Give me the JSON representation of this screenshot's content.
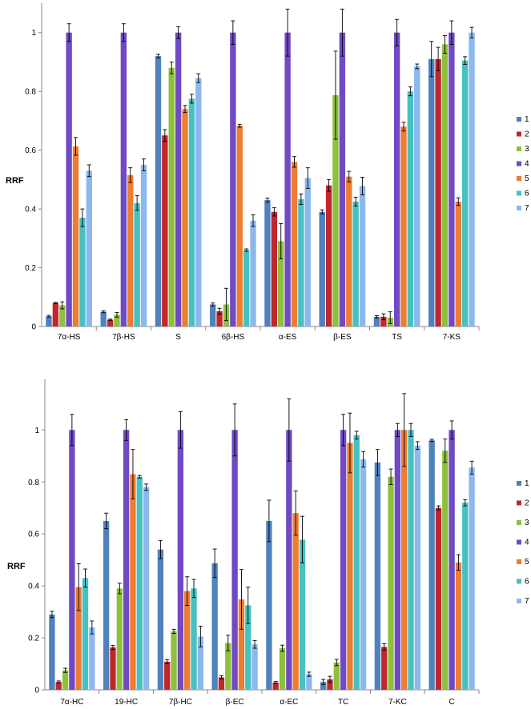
{
  "series_colors": [
    "#4F81BD",
    "#C0272D",
    "#8DC03C",
    "#7049C3",
    "#EC7D31",
    "#46C1C1",
    "#8CB8EE"
  ],
  "chart_data": [
    {
      "type": "bar",
      "ylabel": "RRF",
      "ylim": [
        0,
        1.1
      ],
      "yticks": [
        "0",
        "0.2",
        "0.4",
        "0.6",
        "0.8",
        "1"
      ],
      "categories": [
        "7α-HS",
        "7β-HS",
        "S",
        "6β-HS",
        "α-ES",
        "β-ES",
        "TS",
        "7-KS"
      ],
      "legend_position": "right",
      "series": [
        {
          "name": "1",
          "values": [
            0.035,
            0.05,
            0.92,
            0.075,
            0.43,
            0.39,
            0.033,
            0.91
          ],
          "errors": [
            0.003,
            0.003,
            0.006,
            0.005,
            0.007,
            0.007,
            0.004,
            0.06
          ]
        },
        {
          "name": "2",
          "values": [
            0.08,
            0.023,
            0.65,
            0.052,
            0.39,
            0.48,
            0.033,
            0.91
          ],
          "errors": [
            0.002,
            0.002,
            0.02,
            0.01,
            0.014,
            0.02,
            0.01,
            0.04
          ]
        },
        {
          "name": "3",
          "values": [
            0.072,
            0.04,
            0.88,
            0.075,
            0.29,
            0.787,
            0.03,
            0.96
          ],
          "errors": [
            0.012,
            0.008,
            0.02,
            0.055,
            0.06,
            0.15,
            0.02,
            0.03
          ]
        },
        {
          "name": "4",
          "values": [
            1.0,
            1.0,
            1.0,
            1.0,
            1.0,
            1.0,
            1.0,
            1.0
          ],
          "errors": [
            0.03,
            0.03,
            0.02,
            0.04,
            0.08,
            0.08,
            0.045,
            0.04
          ]
        },
        {
          "name": "5",
          "values": [
            0.613,
            0.515,
            0.74,
            0.683,
            0.56,
            0.51,
            0.68,
            0.425
          ],
          "errors": [
            0.03,
            0.025,
            0.012,
            0.005,
            0.018,
            0.018,
            0.015,
            0.013
          ]
        },
        {
          "name": "6",
          "values": [
            0.37,
            0.42,
            0.775,
            0.26,
            0.433,
            0.425,
            0.8,
            0.905
          ],
          "errors": [
            0.03,
            0.025,
            0.015,
            0.004,
            0.018,
            0.015,
            0.015,
            0.013
          ]
        },
        {
          "name": "7",
          "values": [
            0.53,
            0.55,
            0.845,
            0.36,
            0.505,
            0.478,
            0.885,
            1.0
          ],
          "errors": [
            0.02,
            0.02,
            0.015,
            0.02,
            0.035,
            0.03,
            0.008,
            0.018
          ]
        }
      ]
    },
    {
      "type": "bar",
      "ylabel": "RRF",
      "ylim": [
        0,
        1.2
      ],
      "yticks": [
        "0",
        "0.2",
        "0.4",
        "0.6",
        "0.8",
        "1"
      ],
      "categories": [
        "7α-HC",
        "19-HC",
        "7β-HC",
        "β-EC",
        "α-EC",
        "TC",
        "7-KC",
        "C"
      ],
      "legend_position": "right",
      "series": [
        {
          "name": "1",
          "values": [
            0.29,
            0.65,
            0.54,
            0.487,
            0.65,
            0.03,
            0.875,
            0.96
          ],
          "errors": [
            0.012,
            0.03,
            0.035,
            0.055,
            0.08,
            0.01,
            0.05,
            0.004
          ]
        },
        {
          "name": "2",
          "values": [
            0.03,
            0.163,
            0.108,
            0.048,
            0.028,
            0.04,
            0.165,
            0.7
          ],
          "errors": [
            0.004,
            0.008,
            0.008,
            0.006,
            0.004,
            0.012,
            0.012,
            0.008
          ]
        },
        {
          "name": "3",
          "values": [
            0.075,
            0.39,
            0.225,
            0.18,
            0.16,
            0.105,
            0.82,
            0.92
          ],
          "errors": [
            0.008,
            0.02,
            0.008,
            0.03,
            0.012,
            0.012,
            0.03,
            0.045
          ]
        },
        {
          "name": "4",
          "values": [
            1.0,
            1.0,
            1.0,
            1.0,
            1.0,
            1.0,
            1.0,
            1.0
          ],
          "errors": [
            0.06,
            0.04,
            0.07,
            0.1,
            0.12,
            0.06,
            0.025,
            0.035
          ]
        },
        {
          "name": "5",
          "values": [
            0.395,
            0.83,
            0.38,
            0.348,
            0.68,
            0.95,
            1.0,
            0.49
          ],
          "errors": [
            0.09,
            0.095,
            0.055,
            0.115,
            0.085,
            0.115,
            0.14,
            0.03
          ]
        },
        {
          "name": "6",
          "values": [
            0.43,
            0.82,
            0.39,
            0.325,
            0.578,
            0.98,
            1.0,
            0.72
          ],
          "errors": [
            0.035,
            0.005,
            0.035,
            0.07,
            0.09,
            0.015,
            0.025,
            0.012
          ]
        },
        {
          "name": "7",
          "values": [
            0.24,
            0.78,
            0.205,
            0.175,
            0.06,
            0.887,
            0.94,
            0.855
          ],
          "errors": [
            0.025,
            0.012,
            0.04,
            0.015,
            0.008,
            0.03,
            0.015,
            0.025
          ]
        }
      ]
    }
  ]
}
